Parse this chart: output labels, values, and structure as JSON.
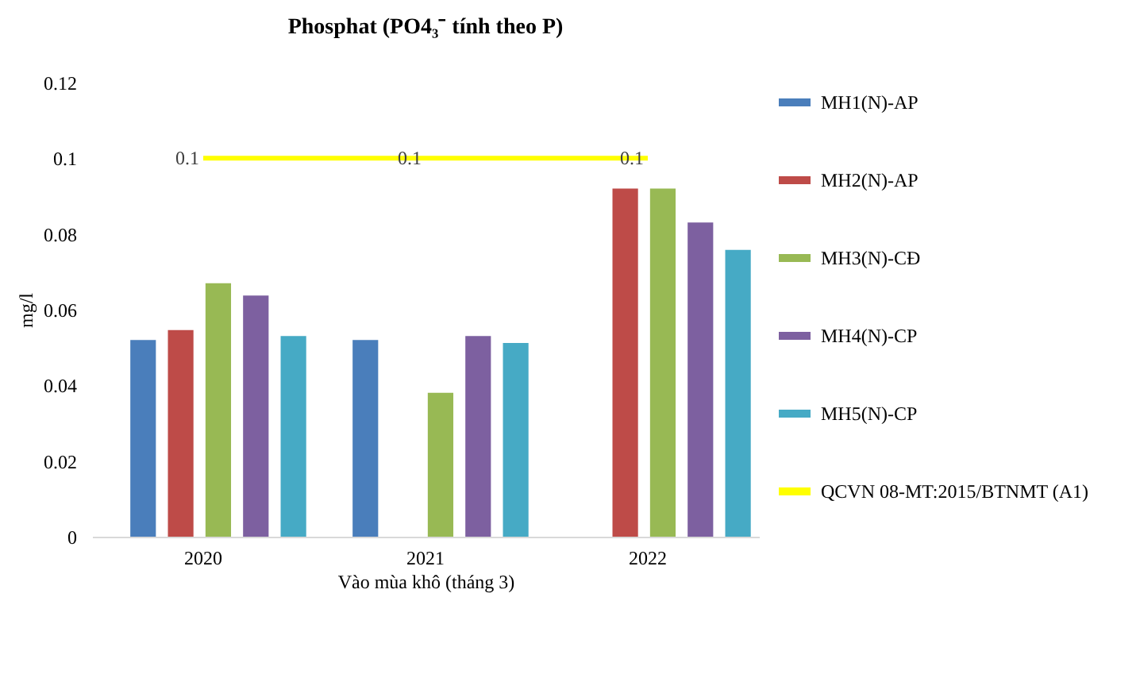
{
  "chart_data": {
    "type": "bar",
    "title": "Phosphat (PO4₃⁻ tính theo P)",
    "xlabel": "Vào mùa khô (tháng 3)",
    "ylabel": "mg/l",
    "categories": [
      "2020",
      "2021",
      "2022"
    ],
    "ylim": [
      0,
      0.12
    ],
    "yticks": [
      0,
      0.02,
      0.04,
      0.06,
      0.08,
      0.1,
      0.12
    ],
    "grid": false,
    "legend": "right",
    "series": [
      {
        "name": "MH1(N)-AP",
        "color": "#4a7ebb",
        "values": [
          0.052,
          0.052,
          null
        ]
      },
      {
        "name": "MH2(N)-AP",
        "color": "#be4b48",
        "values": [
          0.0546,
          null,
          0.092
        ]
      },
      {
        "name": "MH3(N)-CĐ",
        "color": "#98b954",
        "values": [
          0.067,
          0.038,
          0.092
        ]
      },
      {
        "name": "MH4(N)-CP",
        "color": "#7d60a0",
        "values": [
          0.0637,
          0.053,
          0.083
        ]
      },
      {
        "name": "MH5(N)-CP",
        "color": "#46aac5",
        "values": [
          0.053,
          0.0512,
          0.0758
        ]
      },
      {
        "name": "QCVN 08-MT:2015/BTNMT (A1)",
        "type": "line",
        "color": "#ffff00",
        "values": [
          0.1,
          0.1,
          0.1
        ],
        "value_labels": [
          "0.1",
          "0.1",
          "0.1"
        ]
      }
    ]
  }
}
